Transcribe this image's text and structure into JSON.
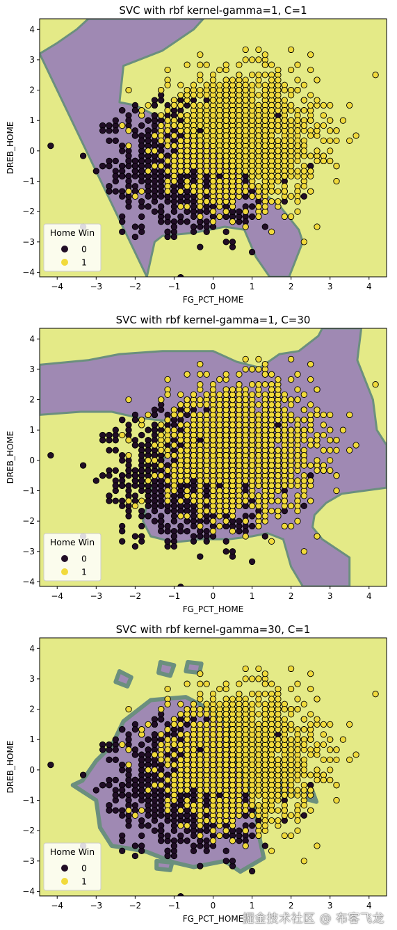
{
  "colors": {
    "class0_region": "#9f89b3",
    "class1_region": "#e4ea87",
    "boundary": "#6b8f7e",
    "class0_point": "#210d26",
    "class1_point": "#f1da3b",
    "edge": "#000000"
  },
  "watermark": "掘金技术社区 @ 布客飞龙",
  "chart_data": [
    {
      "type": "scatter",
      "title": "SVC with rbf kernel-gamma=1, C=1",
      "xlabel": "FG_PCT_HOME",
      "ylabel": "DREB_HOME",
      "xlim": [
        -4.45,
        4.45
      ],
      "ylim": [
        -4.15,
        4.35
      ],
      "xticks": [
        "−4",
        "−3",
        "−2",
        "−1",
        "0",
        "1",
        "2",
        "3",
        "4"
      ],
      "yticks": [
        "−4",
        "−3",
        "−2",
        "−1",
        "0",
        "1",
        "2",
        "3",
        "4"
      ],
      "grid": false,
      "legend": {
        "title": "Home Win",
        "placement": "lower-left",
        "entries": [
          "0",
          "1"
        ]
      },
      "decision_boundary": [
        [
          -4.45,
          3.2
        ],
        [
          -4.0,
          3.55
        ],
        [
          -3.5,
          4.0
        ],
        [
          -3.2,
          4.35
        ],
        [
          -0.25,
          4.35
        ],
        [
          -0.5,
          4.0
        ],
        [
          -1.3,
          3.3
        ],
        [
          -2.3,
          2.8
        ],
        [
          -2.4,
          1.6
        ],
        [
          -2.0,
          1.5
        ],
        [
          -0.9,
          0.8
        ],
        [
          -0.1,
          0.2
        ],
        [
          1.3,
          -1.4
        ],
        [
          1.7,
          -1.8
        ],
        [
          2.2,
          -2.6
        ],
        [
          2.3,
          -3.0
        ],
        [
          1.95,
          -4.15
        ],
        [
          1.45,
          -4.15
        ],
        [
          1.1,
          -3.5
        ],
        [
          0.8,
          -2.6
        ],
        [
          0.3,
          -2.5
        ],
        [
          -0.5,
          -2.7
        ],
        [
          -1.3,
          -2.8
        ],
        [
          -1.5,
          -3.0
        ],
        [
          -1.7,
          -4.15
        ]
      ]
    },
    {
      "type": "scatter",
      "title": "SVC with rbf kernel-gamma=1, C=30",
      "xlabel": "FG_PCT_HOME",
      "ylabel": "DREB_HOME",
      "xlim": [
        -4.45,
        4.45
      ],
      "ylim": [
        -4.15,
        4.35
      ],
      "xticks": [
        "−4",
        "−3",
        "−2",
        "−1",
        "0",
        "1",
        "2",
        "3",
        "4"
      ],
      "yticks": [
        "−4",
        "−3",
        "−2",
        "−1",
        "0",
        "1",
        "2",
        "3",
        "4"
      ],
      "grid": false,
      "legend": {
        "title": "Home Win",
        "placement": "lower-left",
        "entries": [
          "0",
          "1"
        ]
      },
      "decision_boundary": [
        [
          -4.45,
          3.15
        ],
        [
          -3.2,
          3.3
        ],
        [
          -2.4,
          3.5
        ],
        [
          -1.3,
          3.6
        ],
        [
          0.0,
          3.6
        ],
        [
          0.6,
          3.25
        ],
        [
          1.2,
          3.05
        ],
        [
          1.7,
          3.5
        ],
        [
          2.2,
          3.6
        ],
        [
          2.7,
          4.1
        ],
        [
          2.8,
          4.35
        ],
        [
          3.8,
          4.35
        ],
        [
          3.7,
          3.3
        ],
        [
          4.1,
          2.0
        ],
        [
          4.2,
          1.0
        ],
        [
          4.45,
          0.5
        ],
        [
          4.45,
          -0.9
        ],
        [
          3.3,
          -1.1
        ],
        [
          2.9,
          -1.4
        ],
        [
          2.6,
          -1.8
        ],
        [
          2.55,
          -2.2
        ],
        [
          2.8,
          -2.6
        ],
        [
          3.5,
          -3.2
        ],
        [
          3.5,
          -4.15
        ],
        [
          2.3,
          -4.15
        ],
        [
          2.0,
          -3.5
        ],
        [
          1.8,
          -2.6
        ],
        [
          1.4,
          -2.4
        ],
        [
          1.0,
          -2.5
        ],
        [
          0.4,
          -2.6
        ],
        [
          -0.3,
          -2.6
        ],
        [
          -1.0,
          -2.7
        ],
        [
          -1.6,
          -2.5
        ],
        [
          -1.8,
          -2.0
        ],
        [
          -1.5,
          -0.5
        ],
        [
          -1.1,
          0.4
        ],
        [
          -1.2,
          1.3
        ],
        [
          -1.9,
          1.4
        ],
        [
          -2.6,
          1.6
        ],
        [
          -3.4,
          1.6
        ],
        [
          -4.45,
          1.5
        ]
      ]
    },
    {
      "type": "scatter",
      "title": "SVC with rbf kernel-gamma=30, C=1",
      "xlabel": "FG_PCT_HOME",
      "ylabel": "DREB_HOME",
      "xlim": [
        -4.45,
        4.45
      ],
      "ylim": [
        -4.15,
        4.35
      ],
      "xticks": [
        "−4",
        "−3",
        "−2",
        "−1",
        "0",
        "1",
        "2",
        "3",
        "4"
      ],
      "yticks": [
        "−4",
        "−3",
        "−2",
        "−1",
        "0",
        "1",
        "2",
        "3",
        "4"
      ],
      "grid": false,
      "legend": {
        "title": "Home Win",
        "placement": "lower-left",
        "entries": [
          "0",
          "1"
        ]
      },
      "decision_islands": [
        [
          [
            -3.35,
            -0.35
          ],
          [
            -3.0,
            0.3
          ],
          [
            -2.6,
            0.8
          ],
          [
            -2.3,
            1.6
          ],
          [
            -1.6,
            2.3
          ],
          [
            -0.7,
            2.4
          ],
          [
            -0.1,
            2.0
          ],
          [
            0.4,
            1.5
          ],
          [
            0.5,
            0.5
          ],
          [
            0.9,
            -0.5
          ],
          [
            1.1,
            -1.5
          ],
          [
            1.2,
            -2.3
          ],
          [
            1.3,
            -2.9
          ],
          [
            0.7,
            -3.35
          ],
          [
            0.3,
            -3.0
          ],
          [
            -0.5,
            -3.2
          ],
          [
            -1.0,
            -3.05
          ],
          [
            -1.7,
            -2.7
          ],
          [
            -2.1,
            -2.6
          ],
          [
            -2.6,
            -2.5
          ],
          [
            -2.9,
            -1.9
          ],
          [
            -3.0,
            -1.0
          ],
          [
            -3.6,
            -0.5
          ]
        ],
        [
          [
            -2.5,
            2.9
          ],
          [
            -2.2,
            2.75
          ],
          [
            -2.1,
            3.05
          ],
          [
            -2.4,
            3.25
          ]
        ],
        [
          [
            -1.4,
            3.2
          ],
          [
            -1.1,
            3.1
          ],
          [
            -1.0,
            3.45
          ],
          [
            -1.35,
            3.55
          ]
        ],
        [
          [
            -0.7,
            3.25
          ],
          [
            -0.35,
            3.2
          ],
          [
            -0.3,
            3.5
          ],
          [
            -0.65,
            3.55
          ]
        ],
        [
          [
            -1.45,
            -3.0
          ],
          [
            -1.05,
            -3.05
          ],
          [
            -1.1,
            -3.3
          ],
          [
            -1.45,
            -3.25
          ]
        ],
        [
          [
            1.75,
            -0.75
          ],
          [
            2.05,
            -0.85
          ],
          [
            2.0,
            -0.5
          ],
          [
            1.7,
            -0.45
          ]
        ],
        [
          [
            2.35,
            -0.95
          ],
          [
            2.65,
            -1.05
          ],
          [
            2.55,
            -0.7
          ],
          [
            2.3,
            -0.7
          ]
        ]
      ]
    }
  ]
}
